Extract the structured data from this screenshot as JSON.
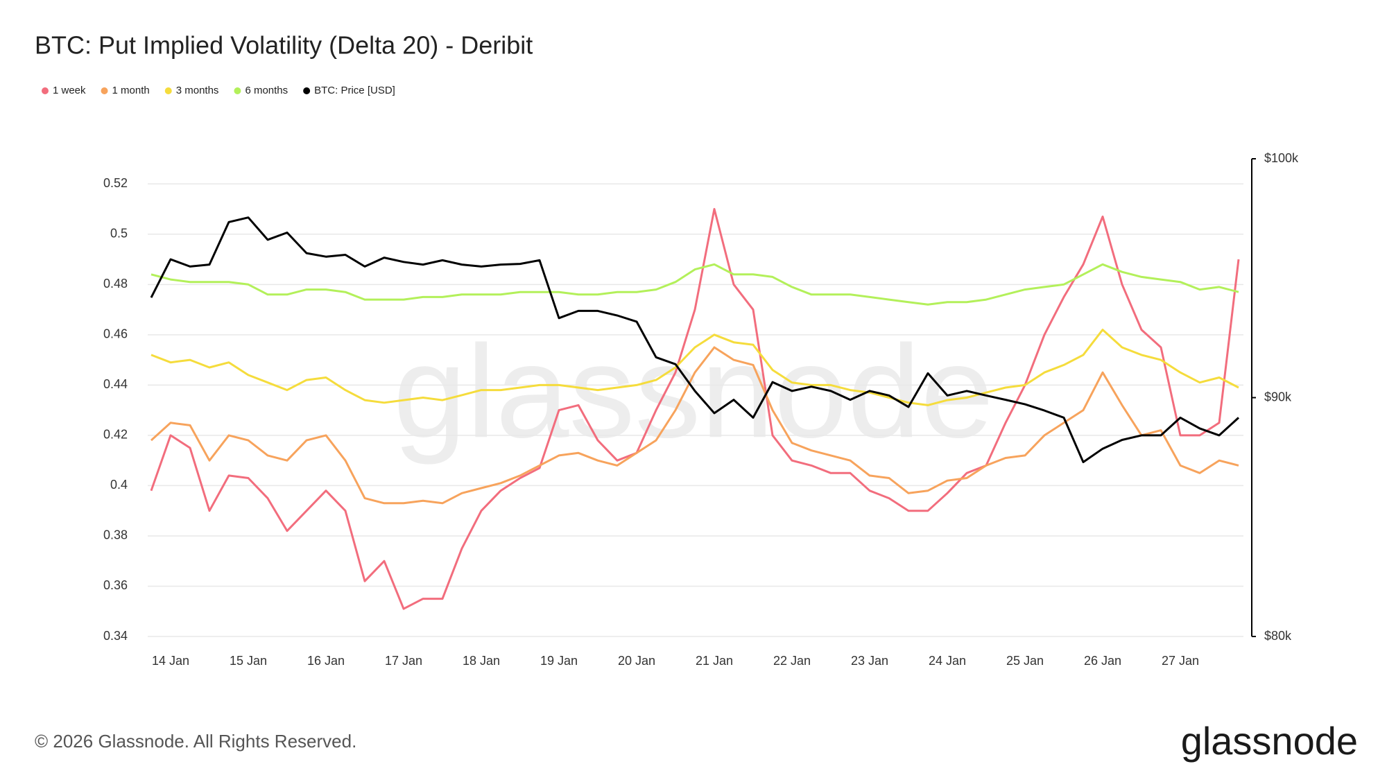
{
  "chart_data": {
    "type": "line",
    "title": "BTC: Put Implied Volatility (Delta 20) - Deribit",
    "watermark": "glassnode",
    "copyright": "© 2026 Glassnode. All Rights Reserved.",
    "brand": "glassnode",
    "legend": "top-left",
    "grid": true,
    "categories": [
      null,
      "14 Jan",
      null,
      null,
      null,
      "15 Jan",
      null,
      null,
      null,
      "16 Jan",
      null,
      null,
      null,
      "17 Jan",
      null,
      null,
      null,
      "18 Jan",
      null,
      null,
      null,
      "19 Jan",
      null,
      null,
      null,
      "20 Jan",
      null,
      null,
      null,
      "21 Jan",
      null,
      null,
      null,
      "22 Jan",
      null,
      null,
      null,
      "23 Jan",
      null,
      null,
      null,
      "24 Jan",
      null,
      null,
      null,
      "25 Jan",
      null,
      null,
      null,
      "26 Jan",
      null,
      null,
      null,
      "27 Jan",
      null,
      null,
      null
    ],
    "ylim": [
      0.34,
      0.53
    ],
    "yticks": [
      0.34,
      0.36,
      0.38,
      0.4,
      0.42,
      0.44,
      0.46,
      0.48,
      0.5,
      0.52
    ],
    "y2lim": [
      80000,
      100000
    ],
    "y2ticks": [
      {
        "value": 80000,
        "label": "$80k"
      },
      {
        "value": 90000,
        "label": "$90k"
      },
      {
        "value": 100000,
        "label": "$100k"
      }
    ],
    "series": [
      {
        "name": "1 week",
        "color": "#f26d7d",
        "values": [
          0.398,
          0.42,
          0.415,
          0.39,
          0.404,
          0.403,
          0.395,
          0.382,
          0.39,
          0.398,
          0.39,
          0.362,
          0.37,
          0.351,
          0.355,
          0.355,
          0.375,
          0.39,
          0.398,
          0.403,
          0.407,
          0.43,
          0.432,
          0.418,
          0.41,
          0.413,
          0.43,
          0.445,
          0.47,
          0.51,
          0.48,
          0.47,
          0.42,
          0.41,
          0.408,
          0.405,
          0.405,
          0.398,
          0.395,
          0.39,
          0.39,
          0.397,
          0.405,
          0.408,
          0.425,
          0.44,
          0.46,
          0.475,
          0.488,
          0.507,
          0.48,
          0.462,
          0.455,
          0.42,
          0.42,
          0.425,
          0.49
        ]
      },
      {
        "name": "1 month",
        "color": "#f7a35c",
        "values": [
          0.418,
          0.425,
          0.424,
          0.41,
          0.42,
          0.418,
          0.412,
          0.41,
          0.418,
          0.42,
          0.41,
          0.395,
          0.393,
          0.393,
          0.394,
          0.393,
          0.397,
          0.399,
          0.401,
          0.404,
          0.408,
          0.412,
          0.413,
          0.41,
          0.408,
          0.413,
          0.418,
          0.43,
          0.445,
          0.455,
          0.45,
          0.448,
          0.43,
          0.417,
          0.414,
          0.412,
          0.41,
          0.404,
          0.403,
          0.397,
          0.398,
          0.402,
          0.403,
          0.408,
          0.411,
          0.412,
          0.42,
          0.425,
          0.43,
          0.445,
          0.432,
          0.42,
          0.422,
          0.408,
          0.405,
          0.41,
          0.408
        ]
      },
      {
        "name": "3 months",
        "color": "#f5dc3c",
        "values": [
          0.452,
          0.449,
          0.45,
          0.447,
          0.449,
          0.444,
          0.441,
          0.438,
          0.442,
          0.443,
          0.438,
          0.434,
          0.433,
          0.434,
          0.435,
          0.434,
          0.436,
          0.438,
          0.438,
          0.439,
          0.44,
          0.44,
          0.439,
          0.438,
          0.439,
          0.44,
          0.442,
          0.447,
          0.455,
          0.46,
          0.457,
          0.456,
          0.446,
          0.441,
          0.44,
          0.44,
          0.438,
          0.437,
          0.435,
          0.433,
          0.432,
          0.434,
          0.435,
          0.437,
          0.439,
          0.44,
          0.445,
          0.448,
          0.452,
          0.462,
          0.455,
          0.452,
          0.45,
          0.445,
          0.441,
          0.443,
          0.439
        ]
      },
      {
        "name": "6 months",
        "color": "#b3f05a",
        "values": [
          0.484,
          0.482,
          0.481,
          0.481,
          0.481,
          0.48,
          0.476,
          0.476,
          0.478,
          0.478,
          0.477,
          0.474,
          0.474,
          0.474,
          0.475,
          0.475,
          0.476,
          0.476,
          0.476,
          0.477,
          0.477,
          0.477,
          0.476,
          0.476,
          0.477,
          0.477,
          0.478,
          0.481,
          0.486,
          0.488,
          0.484,
          0.484,
          0.483,
          0.479,
          0.476,
          0.476,
          0.476,
          0.475,
          0.474,
          0.473,
          0.472,
          0.473,
          0.473,
          0.474,
          0.476,
          0.478,
          0.479,
          0.48,
          0.484,
          0.488,
          0.485,
          0.483,
          0.482,
          0.481,
          0.478,
          0.479,
          0.477
        ]
      },
      {
        "name": "BTC: Price [USD]",
        "color": "#000000",
        "axis": "y2",
        "values": [
          94190,
          95790,
          95490,
          95570,
          97350,
          97540,
          96610,
          96910,
          96050,
          95900,
          95980,
          95490,
          95860,
          95680,
          95570,
          95750,
          95570,
          95490,
          95570,
          95600,
          95750,
          93330,
          93630,
          93630,
          93440,
          93180,
          91690,
          91400,
          90280,
          89350,
          89910,
          89160,
          90650,
          90280,
          90460,
          90280,
          89910,
          90280,
          90090,
          89610,
          91020,
          90090,
          90280,
          90090,
          89910,
          89720,
          89460,
          89160,
          87300,
          87860,
          88230,
          88420,
          88420,
          89160,
          88710,
          88420,
          89160
        ]
      }
    ]
  }
}
